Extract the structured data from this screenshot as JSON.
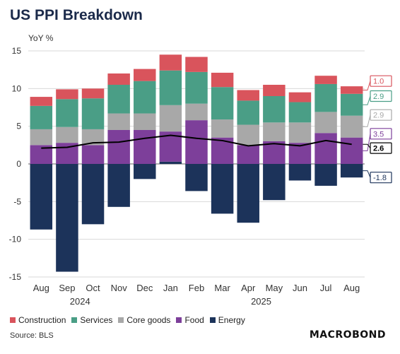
{
  "header": {
    "title": "US PPI Breakdown",
    "ylabel": "YoY %"
  },
  "footer": {
    "source": "Source: BLS",
    "logo": "MACROBOND"
  },
  "colors": {
    "Construction": "#d9545c",
    "Services": "#4a9e86",
    "Core goods": "#a8a8a8",
    "Food": "#7d3f9a",
    "Energy": "#1c335a",
    "Total": "#000000"
  },
  "chart_data": {
    "type": "bar",
    "stacked": true,
    "categories": [
      "Aug",
      "Sep",
      "Oct",
      "Nov",
      "Dec",
      "Jan",
      "Feb",
      "Mar",
      "Apr",
      "May",
      "Jun",
      "Jul",
      "Aug"
    ],
    "year_labels": [
      {
        "label": "2024",
        "category_index": 1.5
      },
      {
        "label": "2025",
        "category_index": 8.5
      }
    ],
    "ylabel": "YoY %",
    "ylim": [
      -15,
      15
    ],
    "yticks": [
      -15,
      -10,
      -5,
      0,
      5,
      10,
      15
    ],
    "series": [
      {
        "name": "Energy",
        "values": [
          -8.7,
          -14.3,
          -8.0,
          -5.7,
          -2.0,
          0.3,
          -3.6,
          -6.6,
          -7.8,
          -4.8,
          -2.2,
          -2.9,
          -1.8
        ]
      },
      {
        "name": "Food",
        "values": [
          2.5,
          2.8,
          2.5,
          4.5,
          4.5,
          4.0,
          5.8,
          3.5,
          2.5,
          3.0,
          2.8,
          4.1,
          3.5
        ]
      },
      {
        "name": "Core goods",
        "values": [
          2.1,
          2.1,
          2.1,
          2.2,
          2.2,
          3.5,
          2.2,
          2.4,
          2.7,
          2.5,
          2.7,
          2.8,
          2.9
        ]
      },
      {
        "name": "Services",
        "values": [
          3.1,
          3.7,
          4.1,
          3.8,
          4.3,
          4.6,
          4.2,
          4.3,
          3.2,
          3.5,
          2.7,
          3.7,
          2.9
        ]
      },
      {
        "name": "Construction",
        "values": [
          1.2,
          1.3,
          1.3,
          1.5,
          1.6,
          2.1,
          2.0,
          1.9,
          1.4,
          1.5,
          1.3,
          1.1,
          1.0
        ]
      }
    ],
    "line": {
      "name": "Total",
      "values": [
        2.1,
        2.2,
        2.8,
        2.9,
        3.4,
        3.8,
        3.4,
        3.1,
        2.4,
        2.7,
        2.4,
        3.1,
        2.6
      ]
    },
    "end_labels": [
      {
        "series": "Construction",
        "label": "1.0"
      },
      {
        "series": "Services",
        "label": "2.9"
      },
      {
        "series": "Core goods",
        "label": "2.9"
      },
      {
        "series": "Food",
        "label": "3.5"
      },
      {
        "series": "Total",
        "label": "2.6"
      },
      {
        "series": "Energy",
        "label": "-1.8"
      }
    ],
    "legend": [
      "Construction",
      "Services",
      "Core goods",
      "Food",
      "Energy"
    ],
    "legend_position": "bottom-left",
    "grid": true
  }
}
